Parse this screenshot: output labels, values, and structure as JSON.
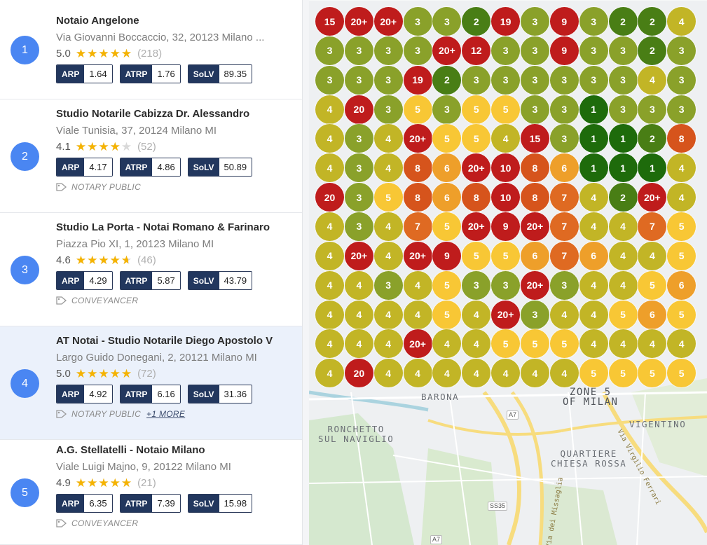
{
  "colors": {
    "badge": "#4a86f2",
    "metric_label_bg": "#22375e",
    "rank_1": "#1e6b0b",
    "rank_2": "#497e15",
    "rank_3": "#8aa12a",
    "rank_4": "#c2b526",
    "rank_5": "#f8c735",
    "rank_6": "#ee9f2a",
    "rank_7": "#df6a22",
    "rank_8": "#d6541c",
    "rank_9_plus": "#bf1c1c"
  },
  "listings": [
    {
      "rank": "1",
      "name": "Notaio Angelone",
      "address": "Via Giovanni Boccaccio, 32, 20123 Milano ...",
      "rating": "5.0",
      "rating_value": 5.0,
      "reviews": "(218)",
      "metrics": [
        {
          "label": "ARP",
          "value": "1.64"
        },
        {
          "label": "ATRP",
          "value": "1.76"
        },
        {
          "label": "SoLV",
          "value": "89.35"
        }
      ],
      "category": "",
      "more": "",
      "selected": false
    },
    {
      "rank": "2",
      "name": "Studio Notarile Cabizza Dr. Alessandro",
      "address": "Viale Tunisia, 37, 20124 Milano MI",
      "rating": "4.1",
      "rating_value": 4.1,
      "reviews": "(52)",
      "metrics": [
        {
          "label": "ARP",
          "value": "4.17"
        },
        {
          "label": "ATRP",
          "value": "4.86"
        },
        {
          "label": "SoLV",
          "value": "50.89"
        }
      ],
      "category": "NOTARY PUBLIC",
      "more": "",
      "selected": false
    },
    {
      "rank": "3",
      "name": "Studio La Porta - Notai Romano & Farinaro",
      "address": "Piazza Pio XI, 1, 20123 Milano MI",
      "rating": "4.6",
      "rating_value": 4.6,
      "reviews": "(46)",
      "metrics": [
        {
          "label": "ARP",
          "value": "4.29"
        },
        {
          "label": "ATRP",
          "value": "5.87"
        },
        {
          "label": "SoLV",
          "value": "43.79"
        }
      ],
      "category": "CONVEYANCER",
      "more": "",
      "selected": false
    },
    {
      "rank": "4",
      "name": "AT Notai - Studio Notarile Diego Apostolo V",
      "address": "Largo Guido Donegani, 2, 20121 Milano MI",
      "rating": "5.0",
      "rating_value": 5.0,
      "reviews": "(72)",
      "metrics": [
        {
          "label": "ARP",
          "value": "4.92"
        },
        {
          "label": "ATRP",
          "value": "6.16"
        },
        {
          "label": "SoLV",
          "value": "31.36"
        }
      ],
      "category": "NOTARY PUBLIC",
      "more": "+1 MORE",
      "selected": true
    },
    {
      "rank": "5",
      "name": "A.G. Stellatelli - Notaio Milano",
      "address": "Viale Luigi Majno, 9, 20122 Milano MI",
      "rating": "4.9",
      "rating_value": 4.9,
      "reviews": "(21)",
      "metrics": [
        {
          "label": "ARP",
          "value": "6.35"
        },
        {
          "label": "ATRP",
          "value": "7.39"
        },
        {
          "label": "SoLV",
          "value": "15.98"
        }
      ],
      "category": "CONVEYANCER",
      "more": "",
      "selected": false
    }
  ],
  "map": {
    "labels": {
      "barona": "BARONA",
      "zone5": "ZONE 5\nOF MILAN",
      "ronchetto": "RONCHETTO\nSUL NAVIGLIO",
      "vigentino": "VIGENTINO",
      "quartiere": "QUARTIERE\nCHIESA ROSSA",
      "via_ferrari": "Via Virgilio Ferrari",
      "via_missaglia": "Via dei Missaglia"
    },
    "shields": {
      "a7_top": "A7",
      "ss35": "SS35",
      "a7_bottom": "A7"
    },
    "rank_grid": [
      [
        "15",
        "20+",
        "20+",
        "3",
        "3",
        "2",
        "19",
        "3",
        "9",
        "3",
        "2",
        "2",
        "4"
      ],
      [
        "3",
        "3",
        "3",
        "3",
        "20+",
        "12",
        "3",
        "3",
        "9",
        "3",
        "3",
        "2",
        "3"
      ],
      [
        "3",
        "3",
        "3",
        "19",
        "2",
        "3",
        "3",
        "3",
        "3",
        "3",
        "3",
        "4",
        "3"
      ],
      [
        "4",
        "20",
        "3",
        "5",
        "3",
        "5",
        "5",
        "3",
        "3",
        "1",
        "3",
        "3",
        "3"
      ],
      [
        "4",
        "3",
        "4",
        "20+",
        "5",
        "5",
        "4",
        "15",
        "3",
        "1",
        "1",
        "2",
        "8"
      ],
      [
        "4",
        "3",
        "4",
        "8",
        "6",
        "20+",
        "10",
        "8",
        "6",
        "1",
        "1",
        "1",
        "4"
      ],
      [
        "20",
        "3",
        "5",
        "8",
        "6",
        "8",
        "10",
        "8",
        "7",
        "4",
        "2",
        "20+",
        "4"
      ],
      [
        "4",
        "3",
        "4",
        "7",
        "5",
        "20+",
        "9",
        "20+",
        "7",
        "4",
        "4",
        "7",
        "5"
      ],
      [
        "4",
        "20+",
        "4",
        "20+",
        "9",
        "5",
        "5",
        "6",
        "7",
        "6",
        "4",
        "4",
        "5"
      ],
      [
        "4",
        "4",
        "3",
        "4",
        "5",
        "3",
        "3",
        "20+",
        "3",
        "4",
        "4",
        "5",
        "6"
      ],
      [
        "4",
        "4",
        "4",
        "4",
        "5",
        "4",
        "20+",
        "3",
        "4",
        "4",
        "5",
        "6",
        "5"
      ],
      [
        "4",
        "4",
        "4",
        "20+",
        "4",
        "4",
        "5",
        "5",
        "5",
        "4",
        "4",
        "4",
        "4"
      ],
      [
        "4",
        "20",
        "4",
        "4",
        "4",
        "4",
        "4",
        "4",
        "4",
        "5",
        "5",
        "5",
        "5"
      ]
    ]
  }
}
